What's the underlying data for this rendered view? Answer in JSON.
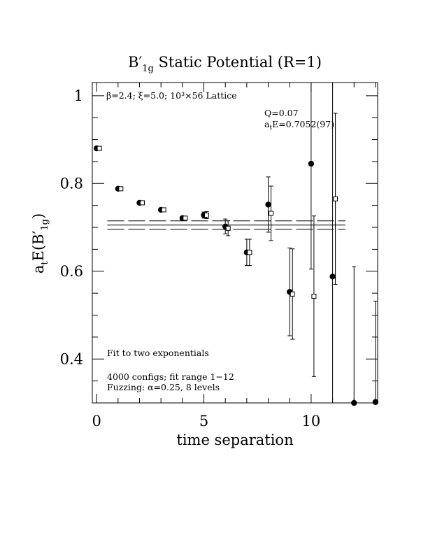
{
  "chart_data": {
    "type": "scatter",
    "title": {
      "main": "B",
      "prime": "′",
      "sub": "1g",
      "rest": " Static Potential (R=1)"
    },
    "xlabel": "time separation",
    "ylabel": {
      "a": "a",
      "a_sub": "t",
      "E": "E(B",
      "prime": "′",
      "sub": "1g",
      "close": ")"
    },
    "xlim": [
      -0.2,
      13.1
    ],
    "ylim": [
      0.3,
      1.03
    ],
    "xticks_major": [
      0,
      5,
      10
    ],
    "xtick_labels": [
      "0",
      "5",
      "10"
    ],
    "yticks_major": [
      0.4,
      0.6,
      0.8,
      1.0
    ],
    "ytick_labels": [
      "0.4",
      "0.6",
      "0.8",
      "1"
    ],
    "x_minor_step": 1,
    "y_minor_step": 0.05,
    "lattice_label": "β=2.4; ξ=5.0; 10³×56 Lattice",
    "fit_quality": "Q=0.07",
    "fit_result": {
      "a": "a",
      "sub": "t",
      "rest": "E=0.7052(97)"
    },
    "notes": [
      "Fit to two exponentials",
      "4000 configs; fit range 1−12",
      "Fuzzing: α=0.25, 8 levels"
    ],
    "series": [
      {
        "marker": "filled-circle",
        "points": [
          {
            "x": 0,
            "y": 0.88,
            "err": 0.003
          },
          {
            "x": 1,
            "y": 0.788,
            "err": 0.003
          },
          {
            "x": 2,
            "y": 0.756,
            "err": 0.003
          },
          {
            "x": 3,
            "y": 0.74,
            "err": 0.003
          },
          {
            "x": 4,
            "y": 0.721,
            "err": 0.003
          },
          {
            "x": 5,
            "y": 0.728,
            "err": 0.007
          },
          {
            "x": 6,
            "y": 0.702,
            "err": 0.017
          },
          {
            "x": 7,
            "y": 0.643,
            "err": 0.03
          },
          {
            "x": 8,
            "y": 0.752,
            "err": 0.063
          },
          {
            "x": 9,
            "y": 0.553,
            "err": 0.1
          },
          {
            "x": 10,
            "y": 0.845,
            "err": 0.24
          },
          {
            "x": 11,
            "y": 0.588,
            "err": 0.47
          },
          {
            "x": 12,
            "y": 0.3,
            "err": 0.31
          },
          {
            "x": 13,
            "y": 0.302,
            "err": 0.23
          }
        ]
      },
      {
        "marker": "open-square",
        "points": [
          {
            "x": 0,
            "y": 0.88,
            "err": 0.003
          },
          {
            "x": 1,
            "y": 0.788,
            "err": 0.003
          },
          {
            "x": 2,
            "y": 0.756,
            "err": 0.003
          },
          {
            "x": 3,
            "y": 0.74,
            "err": 0.003
          },
          {
            "x": 4,
            "y": 0.721,
            "err": 0.003
          },
          {
            "x": 5,
            "y": 0.728,
            "err": 0.008
          },
          {
            "x": 6,
            "y": 0.698,
            "err": 0.017
          },
          {
            "x": 7,
            "y": 0.643,
            "err": 0.03
          },
          {
            "x": 8,
            "y": 0.732,
            "err": 0.062
          },
          {
            "x": 9,
            "y": 0.548,
            "err": 0.103
          },
          {
            "x": 10,
            "y": 0.543,
            "err": 0.183
          },
          {
            "x": 11,
            "y": 0.765,
            "err": 0.195
          }
        ]
      }
    ],
    "fit": {
      "x_range": [
        0.5,
        11.6
      ],
      "center": 0.7052,
      "band": [
        0.6955,
        0.7149
      ]
    }
  }
}
